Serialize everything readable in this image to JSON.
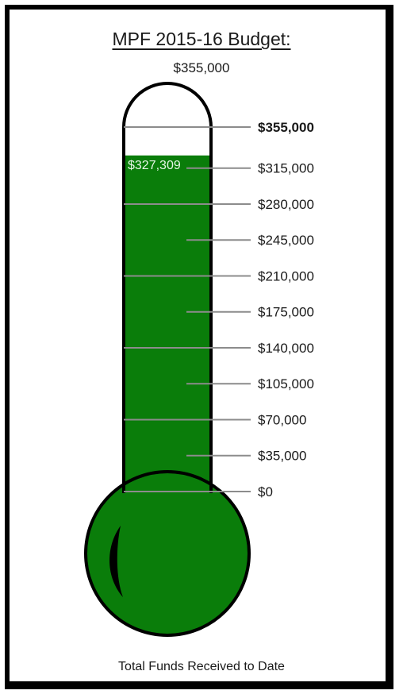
{
  "chart_data": {
    "type": "thermometer",
    "title": "MPF 2015-16 Budget:",
    "goal_label": "$355,000",
    "raised_value": 327309,
    "raised_label": "$327,309",
    "goal_value": 355000,
    "ylim": [
      0,
      355000
    ],
    "ticks": [
      {
        "value": 355000,
        "label": "$355,000",
        "bold": true
      },
      {
        "value": 315000,
        "label": "$315,000",
        "bold": false
      },
      {
        "value": 280000,
        "label": "$280,000",
        "bold": false
      },
      {
        "value": 245000,
        "label": "$245,000",
        "bold": false
      },
      {
        "value": 210000,
        "label": "$210,000",
        "bold": false
      },
      {
        "value": 175000,
        "label": "$175,000",
        "bold": false
      },
      {
        "value": 140000,
        "label": "$140,000",
        "bold": false
      },
      {
        "value": 105000,
        "label": "$105,000",
        "bold": false
      },
      {
        "value": 70000,
        "label": "$70,000",
        "bold": false
      },
      {
        "value": 35000,
        "label": "$35,000",
        "bold": false
      },
      {
        "value": 0,
        "label": "$0",
        "bold": false
      }
    ],
    "footer": "Total Funds Received to Date",
    "fill_color": "#0a7d0a",
    "outline_color": "#000000",
    "tick_color": "#8c8c8c"
  }
}
